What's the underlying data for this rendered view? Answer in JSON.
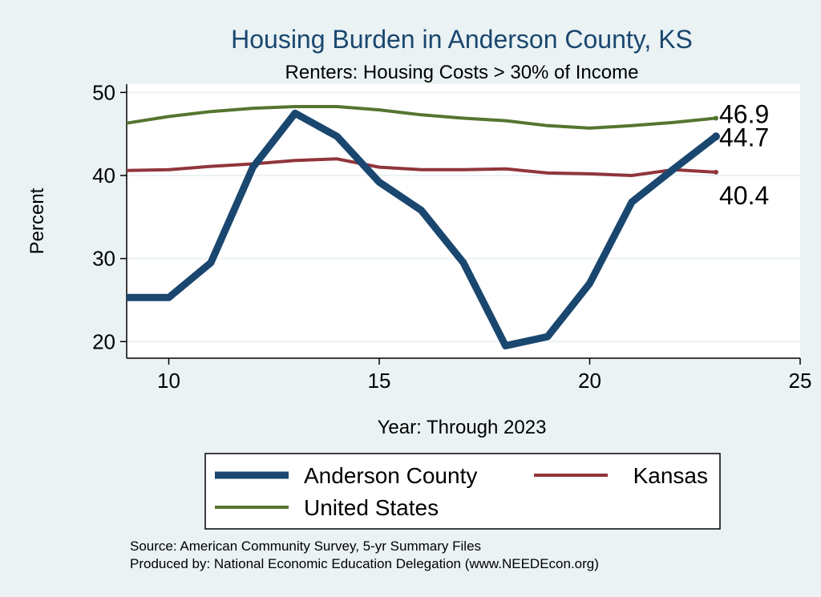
{
  "chart_data": {
    "type": "line",
    "title": "Housing Burden in Anderson County, KS",
    "subtitle": "Renters: Housing Costs > 30% of Income",
    "xlabel": "Year: Through 2023",
    "ylabel": "Percent",
    "xlim": [
      9,
      25
    ],
    "ylim": [
      18,
      51
    ],
    "xticks": [
      10,
      15,
      20,
      25
    ],
    "yticks": [
      20,
      30,
      40,
      50
    ],
    "grid": "horizontal",
    "legend_position": "bottom",
    "x": [
      9,
      10,
      11,
      12,
      13,
      14,
      15,
      16,
      17,
      18,
      19,
      20,
      21,
      22,
      23
    ],
    "series": [
      {
        "name": "Anderson County",
        "color": "#1a476f",
        "values": [
          25.3,
          25.3,
          29.5,
          41.0,
          47.5,
          44.7,
          39.2,
          35.8,
          29.5,
          19.5,
          20.6,
          27.0,
          36.8,
          40.8,
          44.7
        ],
        "end_label": "44.7"
      },
      {
        "name": "Kansas",
        "color": "#90353b",
        "values": [
          40.6,
          40.7,
          41.1,
          41.4,
          41.8,
          42.0,
          41.0,
          40.7,
          40.7,
          40.8,
          40.3,
          40.2,
          40.0,
          40.7,
          40.4
        ],
        "end_label": "40.4"
      },
      {
        "name": "United States",
        "color": "#55752f",
        "values": [
          46.3,
          47.1,
          47.7,
          48.1,
          48.3,
          48.3,
          47.9,
          47.3,
          46.9,
          46.6,
          46.0,
          45.7,
          46.0,
          46.4,
          46.9
        ],
        "end_label": "46.9"
      }
    ]
  },
  "notes": {
    "source": "Source: American Community Survey, 5-yr Summary Files",
    "produced_by": "Produced by: National Economic Education Delegation (www.NEEDEcon.org)"
  }
}
